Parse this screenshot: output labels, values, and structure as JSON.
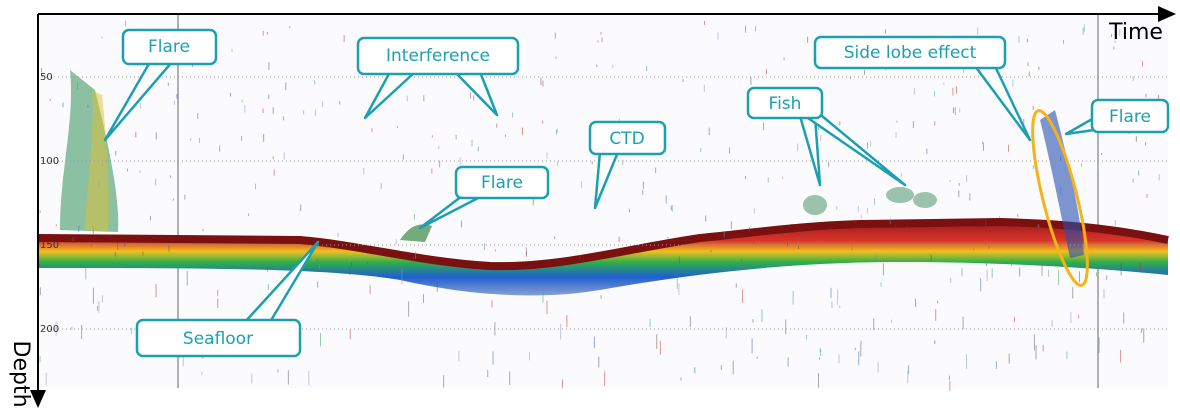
{
  "axes": {
    "x_label": "Time",
    "y_label": "Depth",
    "depth_ticks": [
      50,
      100,
      150,
      200
    ]
  },
  "annotations": [
    "Flare",
    "Interference",
    "Flare",
    "CTD",
    "Fish",
    "Side lobe effect",
    "Flare",
    "Seafloor"
  ]
}
